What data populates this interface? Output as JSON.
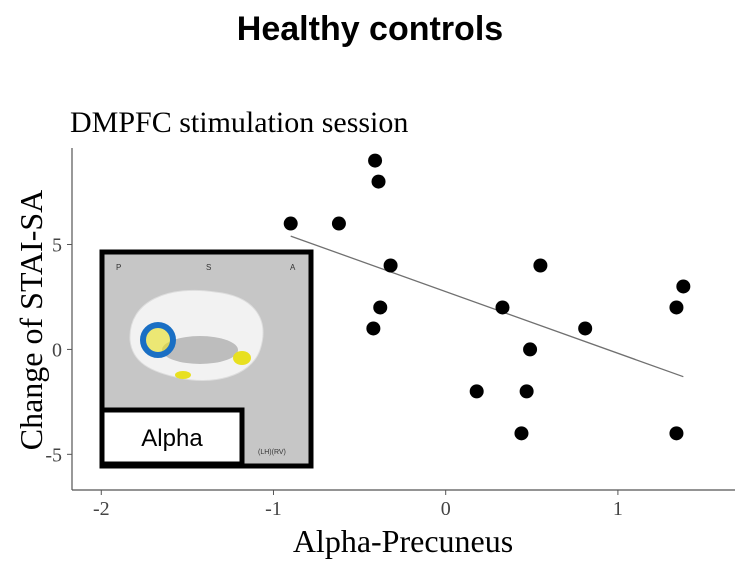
{
  "chart_data": {
    "type": "scatter",
    "title": "Healthy controls",
    "subtitle": "DMPFC stimulation session",
    "x_label": "Alpha-Precuneus",
    "y_label": "Change of STAI-SA",
    "x": [
      -0.9,
      -0.62,
      -0.41,
      -0.39,
      -0.32,
      -0.38,
      -0.42,
      0.55,
      0.33,
      0.49,
      0.81,
      0.18,
      0.47,
      0.44,
      1.38,
      1.34,
      1.34
    ],
    "values": [
      6,
      6,
      9,
      8,
      4,
      2,
      1,
      4,
      2,
      0,
      1,
      -2,
      -2,
      -4,
      3,
      2,
      -4
    ],
    "color": "#000000",
    "trendline": {
      "x": [
        -0.9,
        1.38
      ],
      "y": [
        5.4,
        -1.3
      ],
      "color": "#707070"
    },
    "xlim": [
      -2.17,
      1.68
    ],
    "ylim": [
      -6.7,
      9.6
    ],
    "xticks": [
      -2,
      -1,
      0,
      1
    ],
    "yticks": [
      -5,
      0,
      5
    ],
    "grid": false
  },
  "inset": {
    "orientation_labels": [
      "P",
      "S",
      "A"
    ],
    "view_label": "(LH)(RV)",
    "band": "Alpha"
  }
}
